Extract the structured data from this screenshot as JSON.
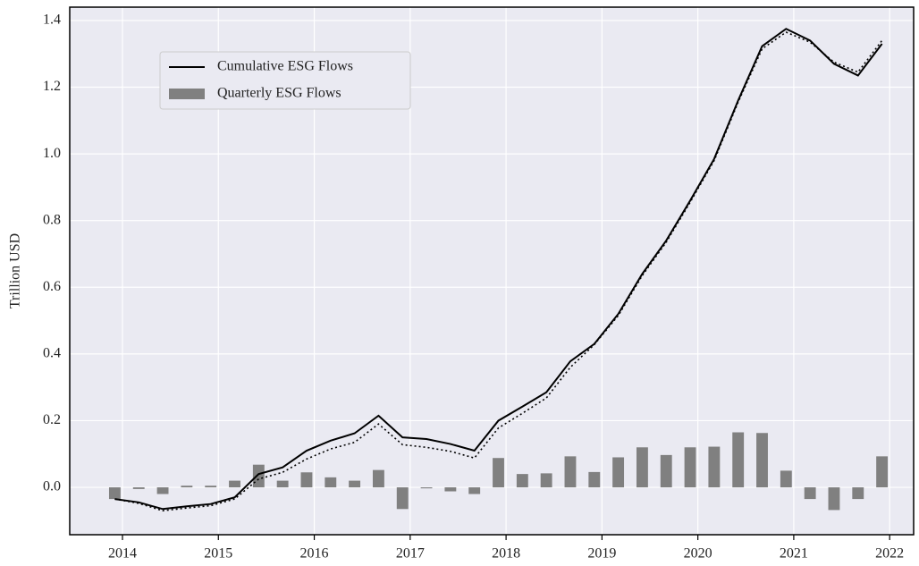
{
  "chart_data": {
    "type": "line",
    "ylabel": "Trillion USD",
    "x": [
      2013.92,
      2014.17,
      2014.42,
      2014.67,
      2014.92,
      2015.17,
      2015.42,
      2015.67,
      2015.92,
      2016.17,
      2016.42,
      2016.67,
      2016.92,
      2017.17,
      2017.42,
      2017.67,
      2017.92,
      2018.17,
      2018.42,
      2018.67,
      2018.92,
      2019.17,
      2019.42,
      2019.67,
      2019.92,
      2020.17,
      2020.42,
      2020.67,
      2020.92,
      2021.17,
      2021.42,
      2021.67,
      2021.92
    ],
    "series": [
      {
        "name": "Cumulative ESG Flows",
        "type": "line",
        "color": "#000000",
        "dash": "solid",
        "values": [
          -0.035,
          -0.045,
          -0.065,
          -0.057,
          -0.05,
          -0.03,
          0.04,
          0.06,
          0.11,
          0.14,
          0.162,
          0.215,
          0.15,
          0.145,
          0.13,
          0.11,
          0.2,
          0.242,
          0.285,
          0.378,
          0.43,
          0.52,
          0.64,
          0.74,
          0.86,
          0.985,
          1.16,
          1.323,
          1.375,
          1.34,
          1.27,
          1.235,
          1.33
        ]
      },
      {
        "type": "line",
        "color": "#000000",
        "dash": "dotted",
        "values": [
          -0.035,
          -0.048,
          -0.07,
          -0.062,
          -0.055,
          -0.035,
          0.025,
          0.045,
          0.085,
          0.115,
          0.135,
          0.19,
          0.128,
          0.12,
          0.108,
          0.088,
          0.178,
          0.222,
          0.268,
          0.36,
          0.428,
          0.515,
          0.635,
          0.735,
          0.855,
          0.98,
          1.155,
          1.315,
          1.365,
          1.335,
          1.275,
          1.245,
          1.34
        ]
      },
      {
        "name": "Quarterly ESG Flows",
        "type": "bar",
        "color": "#808080",
        "values": [
          -0.035,
          -0.005,
          -0.02,
          0.005,
          0.005,
          0.02,
          0.068,
          0.02,
          0.045,
          0.03,
          0.02,
          0.052,
          -0.065,
          -0.003,
          -0.012,
          -0.02,
          0.088,
          0.04,
          0.042,
          0.093,
          0.046,
          0.09,
          0.12,
          0.097,
          0.12,
          0.122,
          0.165,
          0.163,
          0.05,
          -0.035,
          -0.068,
          -0.035,
          0.093
        ]
      }
    ],
    "xlim": [
      2013.45,
      2022.25
    ],
    "xticks": [
      2014,
      2015,
      2016,
      2017,
      2018,
      2019,
      2020,
      2021,
      2022
    ],
    "ylim": [
      -0.142,
      1.44
    ],
    "yticks": [
      {
        "value": 0,
        "label": "0.0"
      },
      0.2,
      0.4,
      0.6,
      0.8,
      {
        "value": 1,
        "label": "1.0"
      },
      1.2,
      1.4
    ],
    "grid": true,
    "legend": "upper left"
  }
}
